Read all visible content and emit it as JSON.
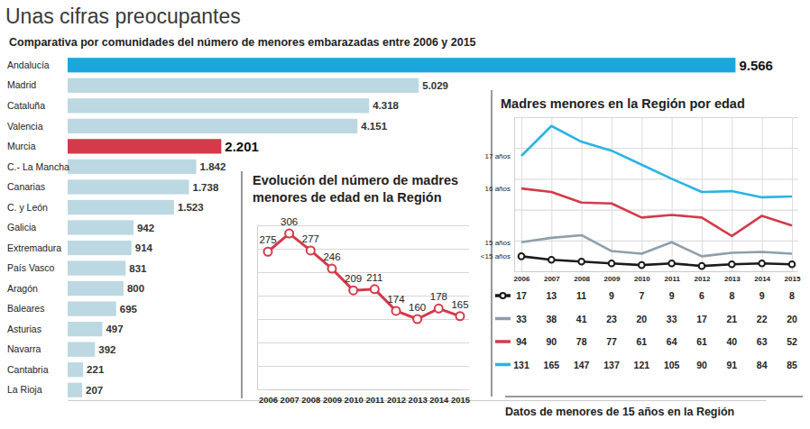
{
  "chart_data": [
    {
      "type": "bar",
      "orientation": "horizontal",
      "title": "Unas cifras preocupantes",
      "subtitle": "Comparativa por comunidades del número de menores embarazadas entre 2006 y 2015",
      "categories": [
        "Andalucía",
        "Madrid",
        "Cataluña",
        "Valencia",
        "Murcia",
        "C.- La Mancha",
        "Canarias",
        "C. y León",
        "Galicia",
        "Extremadura",
        "País Vasco",
        "Aragón",
        "Baleares",
        "Asturias",
        "Navarra",
        "Cantabria",
        "La Rioja"
      ],
      "values": [
        9566,
        5029,
        4318,
        4151,
        2201,
        1842,
        1738,
        1523,
        942,
        914,
        831,
        800,
        695,
        497,
        392,
        221,
        207
      ],
      "value_labels": [
        "9.566",
        "5.029",
        "4.318",
        "4.151",
        "2.201",
        "1.842",
        "1.738",
        "1.523",
        "942",
        "914",
        "831",
        "800",
        "695",
        "497",
        "392",
        "221",
        "207"
      ],
      "colors": [
        "#1ba6dd",
        "#bcd8e2",
        "#bcd8e2",
        "#bcd8e2",
        "#d43a4a",
        "#bcd8e2",
        "#bcd8e2",
        "#bcd8e2",
        "#bcd8e2",
        "#bcd8e2",
        "#bcd8e2",
        "#bcd8e2",
        "#bcd8e2",
        "#bcd8e2",
        "#bcd8e2",
        "#bcd8e2",
        "#bcd8e2"
      ],
      "xlim": [
        0,
        10000
      ],
      "data_labels": true,
      "tick_labels": false
    },
    {
      "type": "line",
      "title": "Evolución del número de madres menores de edad en la Región",
      "categories": [
        "2006",
        "2007",
        "2008",
        "2009",
        "2010",
        "2011",
        "2012",
        "2013",
        "2014",
        "2015"
      ],
      "values": [
        275,
        306,
        277,
        246,
        209,
        211,
        174,
        160,
        178,
        165
      ],
      "color": "#d43a4a",
      "marker": "circle",
      "ylim": [
        40,
        320
      ],
      "yticks": [
        40,
        80,
        120,
        160,
        200,
        240,
        280,
        320
      ],
      "grid": true,
      "data_labels": true,
      "tick_labels": "x"
    },
    {
      "type": "line",
      "title": "Madres menores en la Región por edad",
      "categories": [
        "2006",
        "2007",
        "2008",
        "2009",
        "2010",
        "2011",
        "2012",
        "2013",
        "2014",
        "2015"
      ],
      "series": [
        {
          "name": "<15 años",
          "color": "#1a1a1a",
          "marker": "circle",
          "values": [
            17,
            13,
            11,
            9,
            7,
            9,
            6,
            8,
            9,
            8
          ]
        },
        {
          "name": "15 años",
          "color": "#8e9eab",
          "values": [
            33,
            38,
            41,
            23,
            20,
            33,
            17,
            21,
            22,
            20
          ]
        },
        {
          "name": "16 años",
          "color": "#d43a4a",
          "values": [
            94,
            90,
            78,
            77,
            61,
            64,
            61,
            40,
            63,
            52
          ]
        },
        {
          "name": "17 años",
          "color": "#2bb3e3",
          "values": [
            131,
            165,
            147,
            137,
            121,
            105,
            90,
            91,
            84,
            85
          ]
        }
      ],
      "ylim": [
        0,
        175
      ],
      "yticks": [
        0,
        35,
        70,
        105,
        140,
        175
      ],
      "grid": true,
      "data_labels": true,
      "tick_labels": "x",
      "annotation": "Datos de menores de 15 años en la Región"
    }
  ]
}
